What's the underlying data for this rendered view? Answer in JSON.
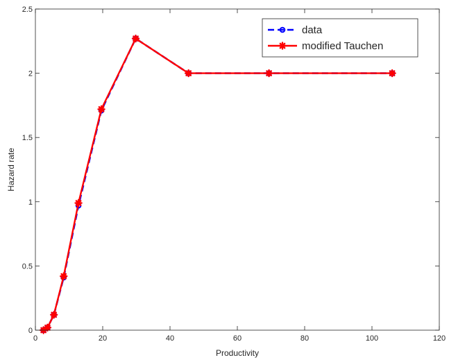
{
  "chart_data": {
    "type": "line",
    "title": "",
    "xlabel": "Productivity",
    "ylabel": "Hazard rate",
    "xlim": [
      0,
      120
    ],
    "ylim": [
      0,
      2.5
    ],
    "xticks": [
      0,
      20,
      40,
      60,
      80,
      100,
      120
    ],
    "yticks": [
      0,
      0.5,
      1,
      1.5,
      2,
      2.5
    ],
    "xtick_labels": [
      "0",
      "20",
      "40",
      "60",
      "80",
      "100",
      "120"
    ],
    "ytick_labels": [
      "0",
      "0.5",
      "1",
      "1.5",
      "2",
      "2.5"
    ],
    "grid": false,
    "legend_position": "top-right",
    "series": [
      {
        "name": "data",
        "color": "#0000ff",
        "line_style": "dashed",
        "marker": "circle",
        "x": [
          2.4,
          3.6,
          5.5,
          8.4,
          12.8,
          19.6,
          29.8,
          45.5,
          69.4,
          106
        ],
        "y": [
          0.0,
          0.02,
          0.12,
          0.41,
          0.97,
          1.71,
          2.27,
          2.0,
          2.0,
          2.0
        ]
      },
      {
        "name": "modified Tauchen",
        "color": "#ff0000",
        "line_style": "solid",
        "marker": "asterisk",
        "x": [
          2.4,
          3.6,
          5.5,
          8.4,
          12.8,
          19.6,
          29.8,
          45.5,
          69.4,
          106
        ],
        "y": [
          0.0,
          0.02,
          0.12,
          0.42,
          0.99,
          1.72,
          2.27,
          2.0,
          2.0,
          2.0
        ]
      }
    ]
  }
}
